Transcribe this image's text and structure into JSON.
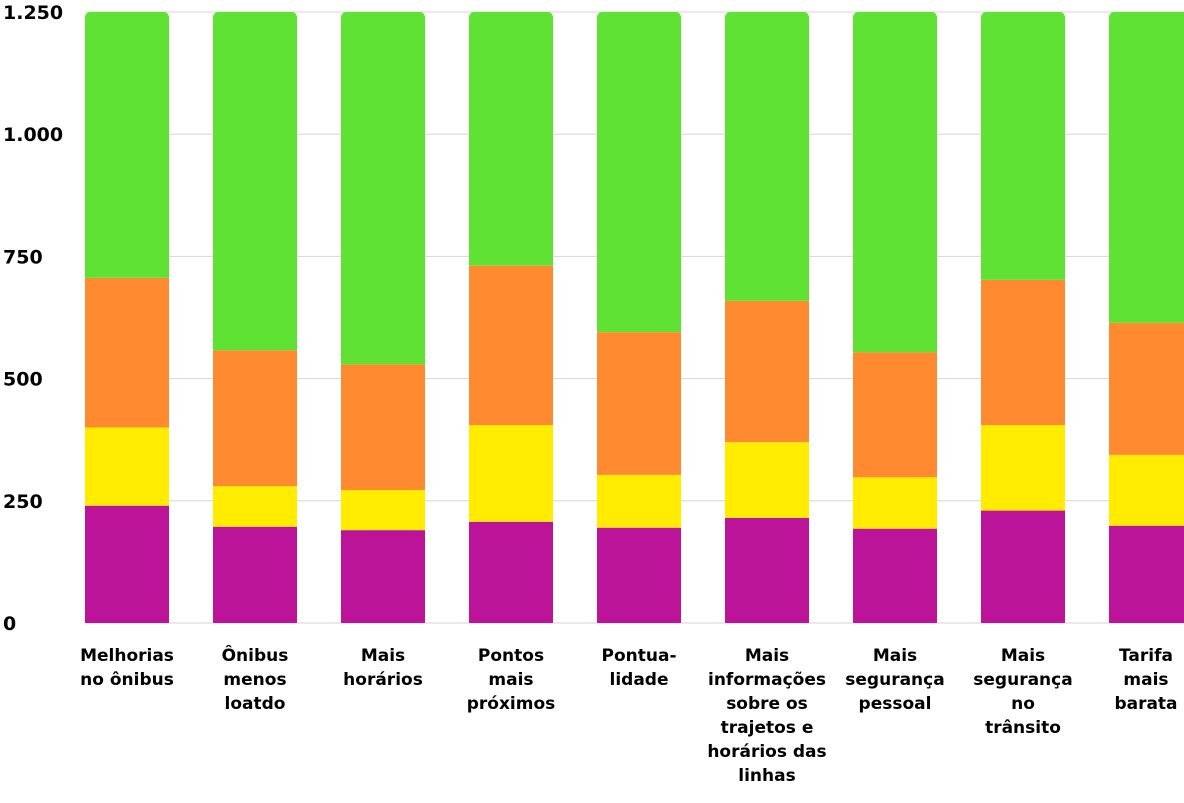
{
  "chart_data": {
    "type": "bar",
    "stacked": true,
    "categories": [
      [
        "Melhorias",
        "no ônibus"
      ],
      [
        "Ônibus",
        "menos",
        "loatdo"
      ],
      [
        "Mais",
        "horários"
      ],
      [
        "Pontos",
        "mais",
        "próximos"
      ],
      [
        "Pontua-",
        "lidade"
      ],
      [
        "Mais",
        "informações",
        "sobre os",
        "trajetos e",
        "horários das",
        "linhas"
      ],
      [
        "Mais",
        "segurança",
        "pessoal"
      ],
      [
        "Mais",
        "segurança",
        "no",
        "trânsito"
      ],
      [
        "Tarifa",
        "mais",
        "barata"
      ]
    ],
    "series": [
      {
        "color": "#bb1499",
        "values": [
          240,
          197,
          190,
          207,
          195,
          215,
          193,
          230,
          199
        ]
      },
      {
        "color": "#ffec00",
        "values": [
          160,
          83,
          82,
          198,
          108,
          155,
          105,
          175,
          145
        ]
      },
      {
        "color": "#ff8a30",
        "values": [
          306,
          278,
          257,
          326,
          292,
          289,
          256,
          297,
          270
        ]
      },
      {
        "color": "#60e234",
        "values": [
          544,
          692,
          721,
          519,
          655,
          591,
          696,
          548,
          636
        ]
      }
    ],
    "ylim": [
      0,
      1250
    ],
    "yticks": [
      {
        "value": 0,
        "label": "0"
      },
      {
        "value": 250,
        "label": "250"
      },
      {
        "value": 500,
        "label": "500"
      },
      {
        "value": 750,
        "label": "750"
      },
      {
        "value": 1000,
        "label": "1.000"
      },
      {
        "value": 1250,
        "label": "1.250"
      }
    ],
    "grid": true,
    "title": "",
    "xlabel": "",
    "ylabel": ""
  }
}
